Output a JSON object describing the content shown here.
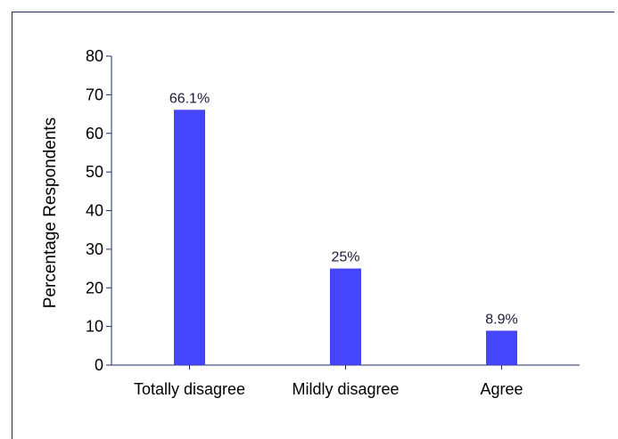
{
  "chart_data": {
    "type": "bar",
    "categories": [
      "Totally disagree",
      "Mildly disagree",
      "Agree"
    ],
    "values": [
      66.1,
      25,
      8.9
    ],
    "data_labels": [
      "66.1%",
      "25%",
      "8.9%"
    ],
    "ylabel": "Percentage Respondents",
    "xlabel": "",
    "ylim": [
      0,
      80
    ],
    "yticks": [
      "0",
      "10",
      "20",
      "30",
      "40",
      "50",
      "60",
      "70",
      "80"
    ],
    "grid": false,
    "legend": "none",
    "bar_color": "#4545fb",
    "axis_color": "#1f2d6b",
    "label_color": "#1a1a3a"
  }
}
